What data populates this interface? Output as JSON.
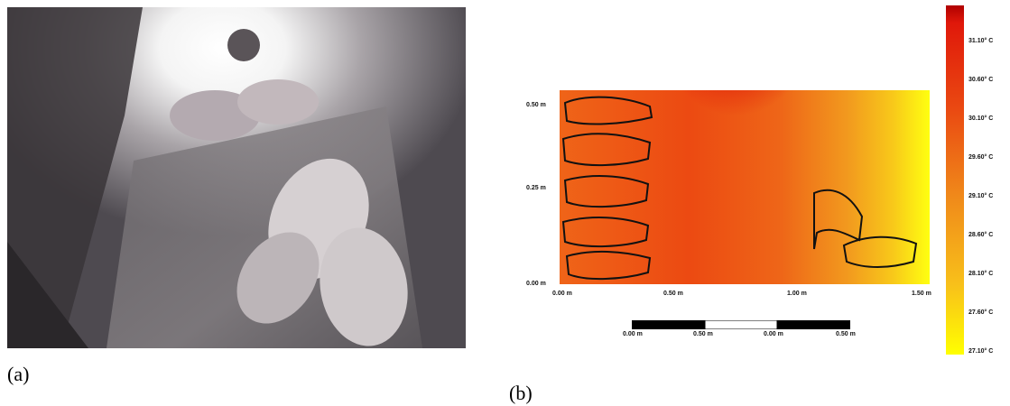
{
  "captions": {
    "a": "(a)",
    "b": "(b)"
  },
  "heatmap": {
    "y_ticks": [
      "0.50 m",
      "0.25 m",
      "0.00 m"
    ],
    "x_ticks": [
      "0.00 m",
      "0.50 m",
      "1.00 m",
      "1.50 m"
    ],
    "scale_labels": [
      "0.00 m",
      "0.50 m",
      "0.00 m",
      "0.50 m"
    ],
    "legend_labels": [
      "31.10° C",
      "30.60° C",
      "30.10° C",
      "29.60° C",
      "29.10° C",
      "28.60° C",
      "28.10° C",
      "27.60° C",
      "27.10° C"
    ],
    "colors": {
      "hot": "#e0180a",
      "warm": "#ee5c12",
      "mid": "#f0901a",
      "cool": "#ffff00"
    }
  }
}
